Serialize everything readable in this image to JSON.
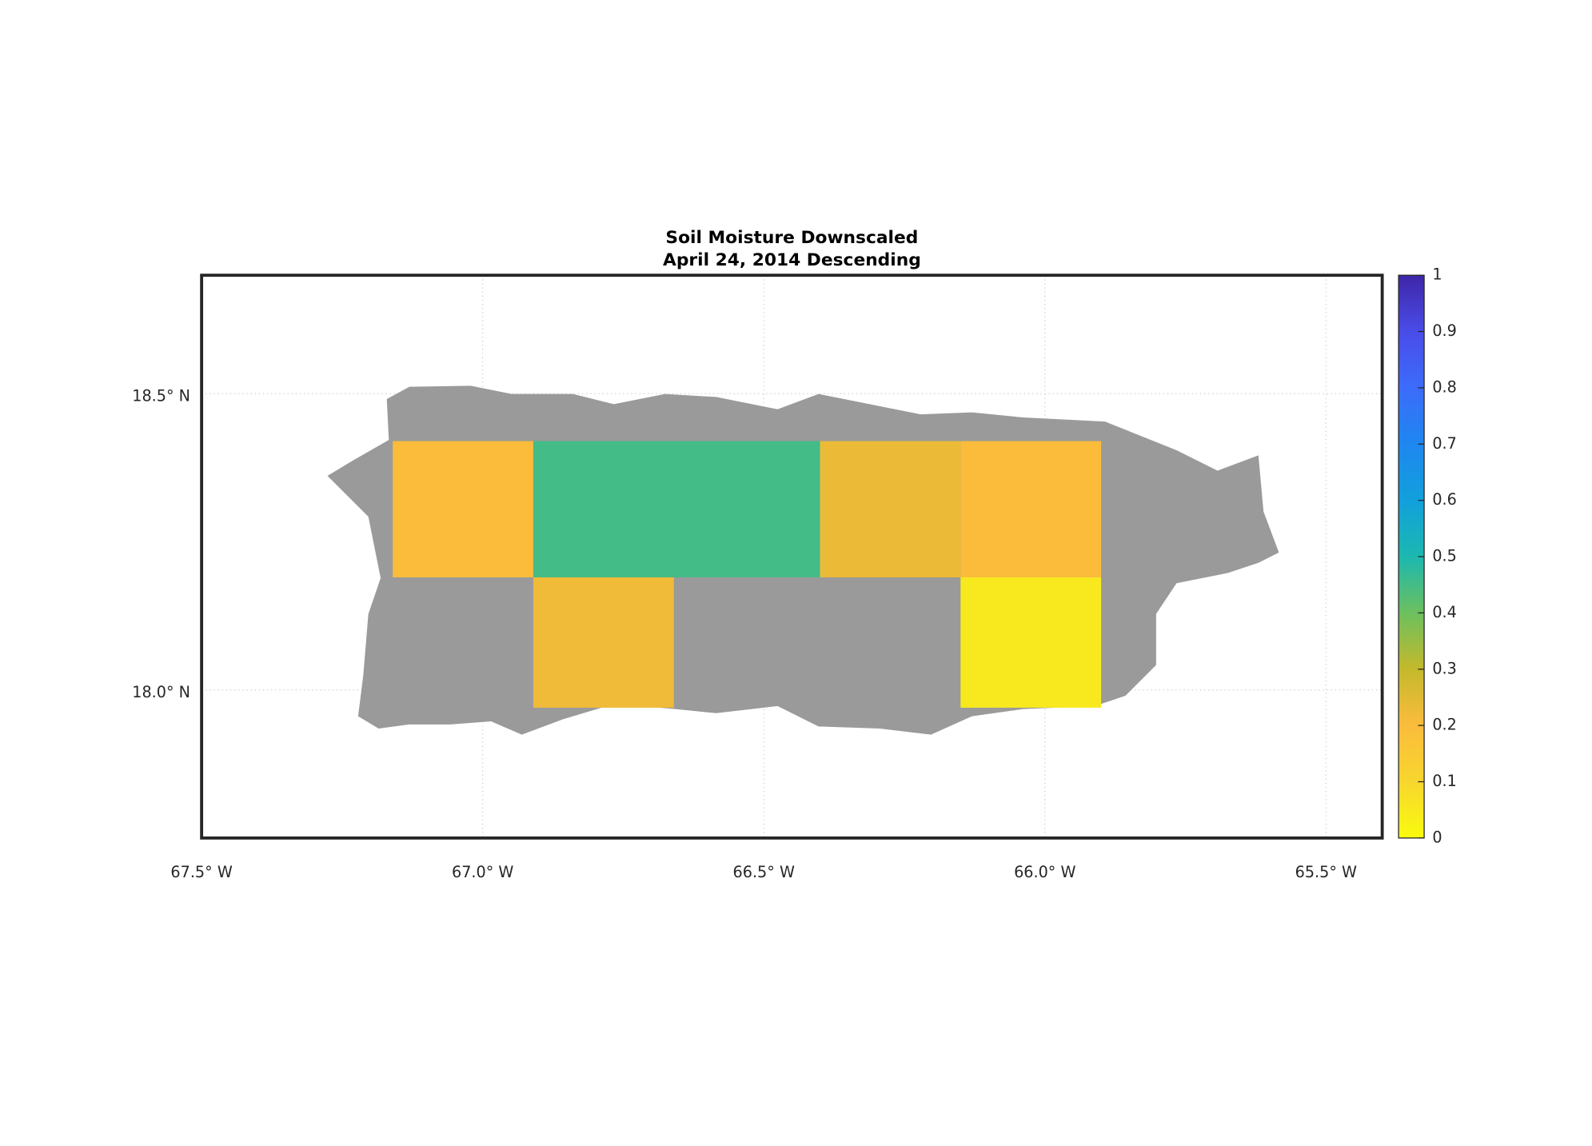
{
  "chart_data": {
    "type": "map",
    "title": "Soil Moisture Downscaled",
    "subtitle": "April 24, 2014 Descending",
    "xlim": [
      -67.5,
      -65.4
    ],
    "ylim": [
      17.75,
      18.7
    ],
    "xticks": [
      {
        "value": -67.5,
        "label": "67.5° W"
      },
      {
        "value": -67.0,
        "label": "67.0° W"
      },
      {
        "value": -66.5,
        "label": "66.5° W"
      },
      {
        "value": -66.0,
        "label": "66.0° W"
      },
      {
        "value": -65.5,
        "label": "65.5° W"
      }
    ],
    "yticks": [
      {
        "value": 18.0,
        "label": "18.0° N"
      },
      {
        "value": 18.5,
        "label": "18.5° N"
      }
    ],
    "grid": true,
    "cells": [
      {
        "lon": [
          -67.16,
          -66.91
        ],
        "lat": [
          18.19,
          18.42
        ],
        "value": 0.2
      },
      {
        "lon": [
          -66.91,
          -66.4
        ],
        "lat": [
          18.19,
          18.42
        ],
        "value": 0.45
      },
      {
        "lon": [
          -66.4,
          -66.15
        ],
        "lat": [
          18.19,
          18.42
        ],
        "value": 0.23
      },
      {
        "lon": [
          -66.15,
          -65.9
        ],
        "lat": [
          18.19,
          18.42
        ],
        "value": 0.2
      },
      {
        "lon": [
          -66.91,
          -66.66
        ],
        "lat": [
          17.97,
          18.19
        ],
        "value": 0.22
      },
      {
        "lon": [
          -66.15,
          -65.9
        ],
        "lat": [
          17.97,
          18.19
        ],
        "value": 0.05
      }
    ],
    "clim": [
      0,
      1
    ],
    "cticks": [
      0,
      0.1,
      0.2,
      0.3,
      0.4,
      0.5,
      0.6,
      0.7,
      0.8,
      0.9,
      1
    ],
    "colormap": [
      "#f9fb0e",
      "#f7d62f",
      "#fbbc3c",
      "#c4b92c",
      "#6cc05e",
      "#1cb8b0",
      "#12a0dc",
      "#1e87f0",
      "#3c6cfa",
      "#4a4ce8",
      "#3e26a8"
    ]
  }
}
